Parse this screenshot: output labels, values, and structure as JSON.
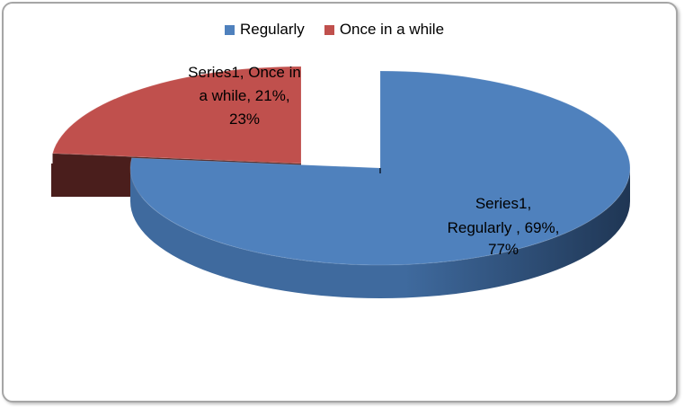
{
  "chart_data": {
    "type": "pie",
    "three_d": true,
    "exploded": true,
    "legend_position": "top",
    "series": [
      {
        "name": "Series1",
        "categories": [
          "Regularly",
          "Once in a while"
        ],
        "values": [
          69,
          21
        ],
        "percentages": [
          77,
          23
        ]
      }
    ],
    "colors": [
      "#4f81bd",
      "#c0504d"
    ],
    "dark_colors": [
      "#2c4a70",
      "#4a1e1c"
    ],
    "data_labels": [
      [
        "Series1,",
        "Regularly , 69%,",
        "77%"
      ],
      [
        "Series1, Once in",
        "a while, 21%,",
        "23%"
      ]
    ]
  },
  "legend": [
    {
      "label": "Regularly",
      "color": "#4f81bd"
    },
    {
      "label": "Once in a while",
      "color": "#c0504d"
    }
  ]
}
